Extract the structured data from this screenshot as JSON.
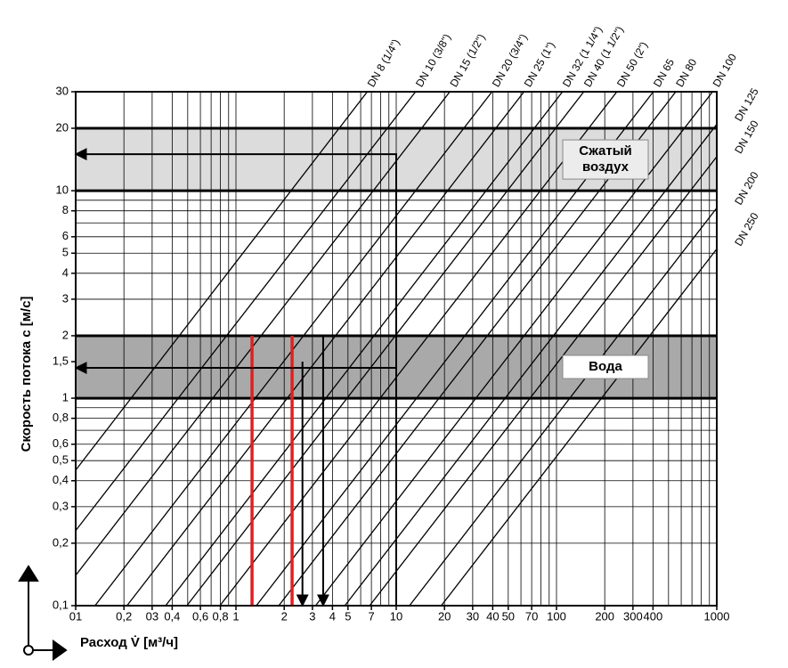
{
  "chart_data": {
    "type": "nomogram",
    "y_label": "Скорость потока  c [м/с]",
    "x_label": "Расход  V̇ [м³/ч]",
    "xscale": "log",
    "yscale": "log",
    "xlim": [
      0.1,
      1000
    ],
    "ylim": [
      0.1,
      30
    ],
    "xticks": [
      {
        "value": 0.1,
        "label": "01"
      },
      {
        "value": 0.2,
        "label": "0,2"
      },
      {
        "value": 0.3,
        "label": "03"
      },
      {
        "value": 0.4,
        "label": "0,4"
      },
      {
        "value": 0.6,
        "label": "0,6"
      },
      {
        "value": 0.8,
        "label": "0,8"
      },
      1,
      2,
      3,
      4,
      5,
      7,
      10,
      20,
      30,
      40,
      50,
      70,
      100,
      200,
      300,
      400,
      1000
    ],
    "yticks": [
      {
        "value": 0.1,
        "label": "0,1"
      },
      {
        "value": 0.2,
        "label": "0,2"
      },
      {
        "value": 0.3,
        "label": "0,3"
      },
      {
        "value": 0.4,
        "label": "0,4"
      },
      {
        "value": 0.5,
        "label": "0,5"
      },
      {
        "value": 0.6,
        "label": "0,6"
      },
      {
        "value": 0.8,
        "label": "0,8"
      },
      1,
      {
        "value": 1.5,
        "label": "1,5"
      },
      2,
      3,
      4,
      5,
      6,
      8,
      10,
      20,
      30
    ],
    "xgrid": [
      0.1,
      0.2,
      0.3,
      0.4,
      0.5,
      0.6,
      0.7,
      0.8,
      0.9,
      1,
      2,
      3,
      4,
      5,
      6,
      7,
      8,
      9,
      10,
      20,
      30,
      40,
      50,
      60,
      70,
      80,
      90,
      100,
      200,
      300,
      400,
      500,
      600,
      700,
      800,
      900,
      1000
    ],
    "ygrid": [
      0.1,
      0.2,
      0.3,
      0.4,
      0.5,
      0.6,
      0.7,
      0.8,
      0.9,
      1,
      2,
      3,
      4,
      5,
      6,
      7,
      8,
      9,
      10,
      20,
      30
    ],
    "grid": true,
    "bands": [
      {
        "label": [
          "Сжатый",
          "воздух"
        ],
        "from": 10,
        "to": 20,
        "color": "#dcdcdc",
        "box": "#ececec"
      },
      {
        "label": [
          "Вода"
        ],
        "from": 1,
        "to": 2,
        "color": "#a9a9a9",
        "box": "#ffffff"
      }
    ],
    "series": [
      {
        "name": "DN 8 (1/4\")",
        "color": "#000000",
        "x": [
          0.1,
          6.6
        ],
        "values": [
          0.45,
          30
        ]
      },
      {
        "name": "DN 10 (3/8\")",
        "color": "#000000",
        "x": [
          0.1,
          13.2
        ],
        "values": [
          0.23,
          30
        ]
      },
      {
        "name": "DN 15 (1/2\")",
        "color": "#000000",
        "x": [
          0.1,
          21.6
        ],
        "values": [
          0.14,
          30
        ]
      },
      {
        "name": "DN 20 (3/4\")",
        "color": "#000000",
        "x": [
          0.132,
          39.6
        ],
        "values": [
          0.1,
          30
        ]
      },
      {
        "name": "DN 25 (1\")",
        "color": "#000000",
        "x": [
          0.209,
          62.7
        ],
        "values": [
          0.1,
          30
        ]
      },
      {
        "name": "DN 32 (1 1/4\")",
        "color": "#000000",
        "x": [
          0.364,
          109
        ],
        "values": [
          0.1,
          30
        ]
      },
      {
        "name": "DN 40 (1 1/2\")",
        "color": "#000000",
        "x": [
          0.494,
          148
        ],
        "values": [
          0.1,
          30
        ]
      },
      {
        "name": "DN 50 (2\")",
        "color": "#000000",
        "x": [
          0.794,
          238
        ],
        "values": [
          0.1,
          30
        ]
      },
      {
        "name": "DN 65",
        "color": "#000000",
        "x": [
          1.34,
          402
        ],
        "values": [
          0.1,
          30
        ]
      },
      {
        "name": "DN 80",
        "color": "#000000",
        "x": [
          1.85,
          555
        ],
        "values": [
          0.1,
          30
        ]
      },
      {
        "name": "DN 100",
        "color": "#000000",
        "x": [
          3.14,
          942
        ],
        "values": [
          0.1,
          30
        ]
      },
      {
        "name": "DN 125",
        "color": "#000000",
        "x": [
          4.78,
          1000
        ],
        "values": [
          0.1,
          20.9
        ]
      },
      {
        "name": "DN 150",
        "color": "#000000",
        "x": [
          6.83,
          1000
        ],
        "values": [
          0.1,
          14.6
        ]
      },
      {
        "name": "DN 200",
        "color": "#000000",
        "x": [
          12.1,
          1000
        ],
        "values": [
          0.1,
          8.26
        ]
      },
      {
        "name": "DN 250",
        "color": "#000000",
        "x": [
          19.1,
          1000
        ],
        "values": [
          0.1,
          5.24
        ]
      }
    ],
    "markers": [
      {
        "color": "#e02020",
        "x": [
          1.26,
          1.26
        ],
        "values": [
          0.1,
          2
        ]
      },
      {
        "color": "#e02020",
        "x": [
          2.24,
          2.24
        ],
        "values": [
          0.1,
          2
        ]
      }
    ],
    "guides": [
      {
        "color": "#000000",
        "x": [
          10,
          10,
          0.1
        ],
        "values": [
          0.1,
          15,
          15
        ]
      },
      {
        "color": "#000000",
        "x": [
          10,
          10,
          0.1
        ],
        "values": [
          0.1,
          1.4,
          1.4
        ]
      },
      {
        "color": "#000000",
        "x": [
          2.6,
          2.6
        ],
        "values": [
          1.5,
          0.1
        ]
      },
      {
        "color": "#000000",
        "x": [
          3.5,
          3.5
        ],
        "values": [
          2,
          0.1
        ]
      }
    ]
  }
}
